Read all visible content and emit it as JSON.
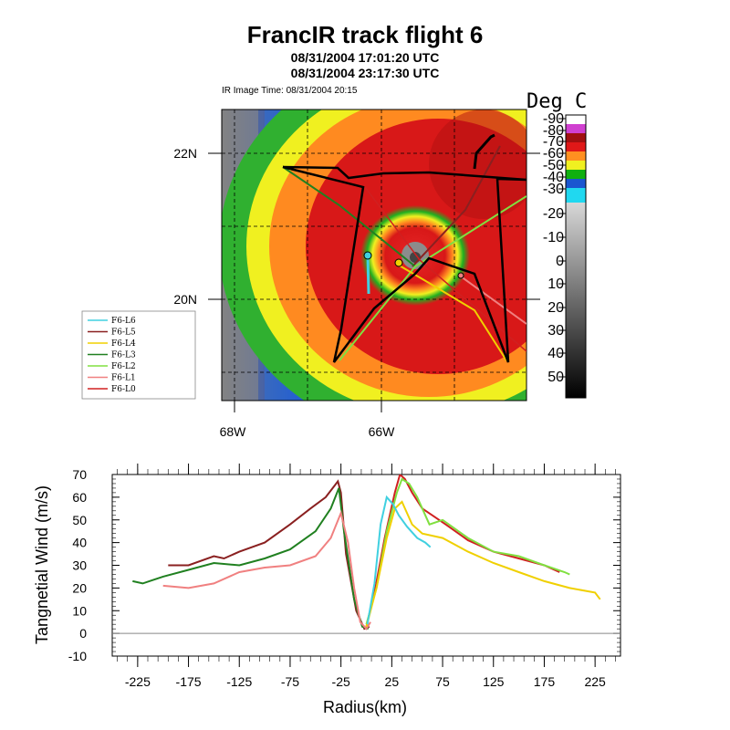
{
  "header": {
    "title": "FrancIR track flight 6",
    "time_start": "08/31/2004 17:01:20 UTC",
    "time_end": "08/31/2004 23:17:30 UTC",
    "ir_time": "IR Image Time: 08/31/2004 20:15"
  },
  "map": {
    "lat_labels": [
      "22N",
      "20N"
    ],
    "lon_labels": [
      "68W",
      "66W"
    ]
  },
  "colorbar": {
    "unit": "Deg C",
    "labels": [
      "-90",
      "-80",
      "-70",
      "-60",
      "-50",
      "-40",
      "-30",
      "-20",
      "-10",
      "0",
      "10",
      "20",
      "30",
      "40",
      "50"
    ],
    "colors": {
      "white": "#ffffff",
      "magenta": "#d040d0",
      "deep_red": "#a01010",
      "red": "#e01818",
      "orange": "#ff9020",
      "yellow": "#f0f020",
      "green": "#10b010",
      "blue": "#1a56d0",
      "cyan": "#20d8f0"
    }
  },
  "legend": {
    "entries": [
      {
        "label": "F6-L6",
        "color": "#40d0e0"
      },
      {
        "label": "F6-L5",
        "color": "#8a2020"
      },
      {
        "label": "F6-L4",
        "color": "#f0d000"
      },
      {
        "label": "F6-L3",
        "color": "#208020"
      },
      {
        "label": "F6-L2",
        "color": "#80e040"
      },
      {
        "label": "F6-L1",
        "color": "#f08080"
      },
      {
        "label": "F6-L0",
        "color": "#d02020"
      }
    ]
  },
  "chart_data": {
    "type": "line",
    "title": "",
    "xlabel": "Radius(km)",
    "ylabel": "Tangnetial Wind (m/s)",
    "xlim": [
      -250,
      250
    ],
    "ylim": [
      -10,
      70
    ],
    "xticks": [
      -225,
      -175,
      -125,
      -75,
      -25,
      25,
      75,
      125,
      175,
      225
    ],
    "yticks": [
      -10,
      0,
      10,
      20,
      30,
      40,
      50,
      60,
      70
    ],
    "zero_line": true,
    "series": [
      {
        "name": "F6-L5",
        "color": "#8a2020",
        "x": [
          -195,
          -175,
          -150,
          -140,
          -125,
          -100,
          -75,
          -55,
          -40,
          -28,
          -25,
          -20,
          -10,
          -2,
          3
        ],
        "y": [
          30,
          30,
          34,
          33,
          36,
          40,
          48,
          55,
          60,
          67,
          62,
          35,
          10,
          2,
          3
        ]
      },
      {
        "name": "F6-L3",
        "color": "#208020",
        "x": [
          -230,
          -220,
          -200,
          -175,
          -150,
          -125,
          -100,
          -75,
          -50,
          -35,
          -27,
          -22,
          -12,
          -4,
          2
        ],
        "y": [
          23,
          22,
          25,
          28,
          31,
          30,
          33,
          37,
          45,
          55,
          64,
          45,
          15,
          3,
          2
        ]
      },
      {
        "name": "F6-L1",
        "color": "#f08080",
        "x": [
          -200,
          -175,
          -150,
          -125,
          -100,
          -75,
          -50,
          -35,
          -25,
          -18,
          -12,
          -6,
          0,
          4
        ],
        "y": [
          21,
          20,
          22,
          27,
          29,
          30,
          34,
          42,
          53,
          40,
          20,
          5,
          2,
          5
        ]
      },
      {
        "name": "F6-L0",
        "color": "#d02020",
        "x": [
          0,
          8,
          18,
          28,
          33,
          38,
          45,
          55,
          65,
          78,
          100,
          125,
          150,
          175,
          190
        ],
        "y": [
          3,
          18,
          42,
          62,
          70,
          68,
          62,
          55,
          52,
          48,
          41,
          36,
          33,
          30,
          27
        ]
      },
      {
        "name": "F6-L2",
        "color": "#80e040",
        "x": [
          0,
          10,
          20,
          30,
          35,
          42,
          50,
          62,
          75,
          100,
          125,
          150,
          175,
          195,
          200
        ],
        "y": [
          4,
          20,
          45,
          62,
          68,
          66,
          60,
          48,
          50,
          42,
          36,
          34,
          30,
          27,
          26
        ]
      },
      {
        "name": "F6-L4",
        "color": "#f0d000",
        "x": [
          0,
          10,
          20,
          28,
          35,
          45,
          55,
          75,
          100,
          125,
          150,
          175,
          200,
          225,
          230
        ],
        "y": [
          3,
          20,
          42,
          55,
          58,
          48,
          44,
          42,
          36,
          31,
          27,
          23,
          20,
          18,
          15
        ]
      },
      {
        "name": "F6-L6",
        "color": "#40d0e0",
        "x": [
          1,
          8,
          14,
          20,
          26,
          32,
          40,
          50,
          58,
          63
        ],
        "y": [
          4,
          22,
          48,
          60,
          57,
          52,
          47,
          42,
          40,
          38
        ]
      }
    ]
  }
}
